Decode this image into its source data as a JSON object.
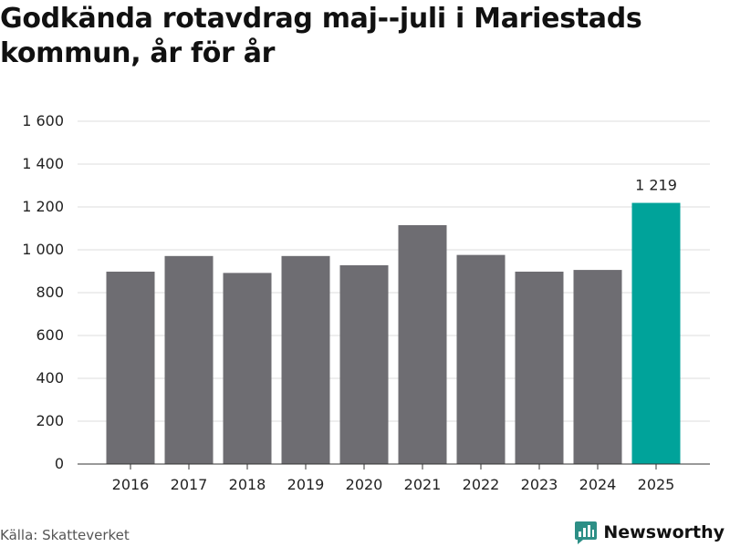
{
  "title": "Godkända rotavdrag maj--juli i Mariestads kommun, år för år",
  "source": "Källa: Skatteverket",
  "brand": {
    "name": "Newsworthy",
    "icon": "newsworthy-logo-icon",
    "color": "#2d8f86"
  },
  "colors": {
    "bar": "#6e6d72",
    "highlight": "#00a39a",
    "grid": "#dddddd",
    "axis": "#333333"
  },
  "chart_data": {
    "type": "bar",
    "categories": [
      "2016",
      "2017",
      "2018",
      "2019",
      "2020",
      "2021",
      "2022",
      "2023",
      "2024",
      "2025"
    ],
    "values": [
      898,
      971,
      892,
      971,
      928,
      1115,
      976,
      898,
      906,
      1219
    ],
    "ylim": [
      0,
      1600
    ],
    "yticks": [
      0,
      200,
      400,
      600,
      800,
      1000,
      1200,
      1400,
      1600
    ],
    "ytick_labels": [
      "0",
      "200",
      "400",
      "600",
      "800",
      "1 000",
      "1 200",
      "1 400",
      "1 600"
    ],
    "highlight_index": 9,
    "data_labels": [
      {
        "index": 9,
        "text": "1 219"
      }
    ],
    "xlabel": "",
    "ylabel": "",
    "grid": true,
    "legend": "none"
  }
}
